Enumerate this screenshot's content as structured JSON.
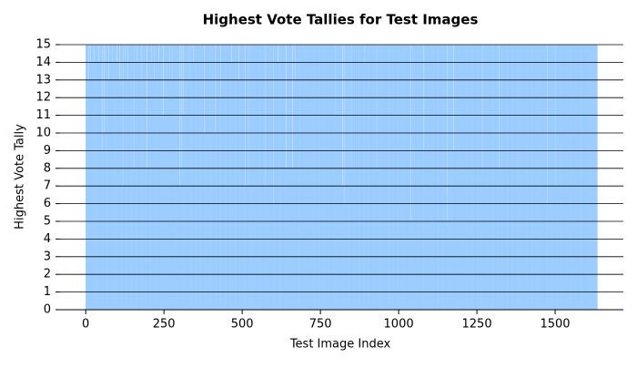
{
  "chart_data": {
    "type": "bar",
    "title": "Highest Vote Tallies for Test Images",
    "x_label": "Test Image Index",
    "y_label": "Highest Vote Tally",
    "color": "#80bfff",
    "grid": true,
    "xlim": [
      -82,
      1718
    ],
    "xticks": [
      0,
      250,
      500,
      750,
      1000,
      1250,
      1500
    ],
    "ylim": [
      0,
      15
    ],
    "yticks": [
      0,
      1,
      2,
      3,
      4,
      5,
      6,
      7,
      8,
      9,
      10,
      11,
      12,
      13,
      14,
      15
    ],
    "values": [
      15,
      15,
      15,
      15,
      15,
      15,
      15,
      15,
      15,
      15,
      13,
      15,
      15,
      15,
      15,
      15,
      14,
      15,
      15,
      15,
      15,
      15,
      15,
      15,
      15,
      15,
      14,
      15,
      15,
      15,
      15,
      15,
      15,
      15,
      15,
      15,
      15,
      15,
      15,
      15,
      15,
      15,
      14,
      15,
      15,
      15,
      15,
      15,
      15,
      15,
      15,
      15,
      9,
      15,
      15,
      15,
      15,
      15,
      10,
      15,
      15,
      15,
      14,
      15,
      15,
      15,
      15,
      15,
      15,
      15,
      15,
      15,
      15,
      15,
      13,
      15,
      15,
      15,
      15,
      15,
      15,
      15,
      15,
      15,
      15,
      14,
      15,
      15,
      15,
      15,
      15,
      15,
      15,
      15,
      15,
      15,
      15,
      15,
      15,
      14,
      15,
      15,
      15,
      15,
      15,
      15,
      15,
      15,
      15,
      13,
      15,
      15,
      15,
      15,
      15,
      15,
      15,
      15,
      15,
      15,
      7,
      15,
      15,
      15,
      15,
      15,
      15,
      14,
      15,
      15,
      15,
      15,
      15,
      15,
      15,
      13,
      15,
      15,
      15,
      15,
      15,
      15,
      15,
      15,
      15,
      15,
      15,
      15,
      15,
      15,
      15,
      15,
      15,
      15,
      15,
      8,
      15,
      15,
      15,
      15,
      15,
      15,
      15,
      15,
      14,
      15,
      15,
      15,
      15,
      15,
      15,
      15,
      15,
      15,
      15,
      15,
      15,
      13,
      15,
      15,
      15,
      15,
      15,
      15,
      15,
      15,
      15,
      15,
      15,
      15,
      15,
      15,
      15,
      15,
      15,
      8,
      15,
      15,
      15,
      15,
      15,
      15,
      15,
      15,
      15,
      15,
      15,
      15,
      15,
      15,
      14,
      15,
      15,
      15,
      15,
      15,
      15,
      15,
      15,
      13,
      15,
      15,
      15,
      15,
      15,
      15,
      15,
      15,
      15,
      15,
      15,
      15,
      15,
      14,
      15,
      15,
      15,
      15,
      15,
      15,
      15,
      15,
      15,
      15,
      15,
      15,
      15,
      15,
      15,
      11,
      15,
      15,
      15,
      15,
      15,
      15,
      15,
      15,
      15,
      15,
      15,
      15,
      15,
      15,
      15,
      15,
      15,
      15,
      14,
      15,
      15,
      15,
      15,
      15,
      15,
      15,
      15,
      13,
      15,
      15,
      15,
      15,
      15,
      15,
      15,
      15,
      15,
      15,
      15,
      15,
      15,
      15,
      15,
      15,
      15,
      15,
      15,
      15,
      15,
      15,
      7,
      15,
      15,
      15,
      15,
      8,
      15,
      15,
      15,
      15,
      15,
      11,
      15,
      15,
      15,
      15,
      15,
      15,
      15,
      15,
      15,
      15,
      15,
      15,
      15,
      15,
      15,
      15,
      15,
      15,
      15,
      13,
      15,
      15,
      15,
      15,
      15,
      15,
      15,
      15,
      15,
      15,
      15,
      14,
      15,
      15,
      15,
      15,
      15,
      15,
      15,
      15,
      15,
      15,
      15,
      15,
      15,
      15,
      15,
      15,
      15,
      15,
      15,
      15,
      15,
      15,
      15,
      15,
      15,
      15,
      15,
      15,
      15,
      15,
      15,
      15,
      15,
      15,
      15,
      15,
      10,
      15,
      15,
      15,
      15,
      15,
      15,
      15,
      15,
      15,
      15,
      15,
      15,
      15,
      15,
      15,
      15,
      15,
      15,
      15,
      15,
      15,
      15,
      15,
      15,
      15,
      15,
      15,
      15,
      15,
      15,
      15,
      15,
      15,
      15,
      10,
      15,
      15,
      15,
      15,
      15,
      15,
      15,
      15,
      15,
      15,
      15,
      15,
      15,
      15,
      15,
      12,
      15,
      15,
      15,
      15,
      15,
      15,
      15,
      15,
      15,
      15,
      15,
      15,
      15,
      15,
      15,
      15,
      15,
      15,
      15,
      15,
      15,
      15,
      15,
      15,
      15,
      15,
      15,
      15,
      15,
      15,
      15,
      15,
      15,
      15,
      15,
      14,
      15,
      15,
      15,
      15,
      15,
      15,
      15,
      15,
      15,
      15,
      15,
      15,
      15,
      15,
      15,
      15,
      15,
      15,
      15,
      15,
      15,
      15,
      13,
      15,
      15,
      15,
      15,
      15,
      15,
      15,
      15,
      15,
      15,
      15,
      15,
      15,
      15,
      15,
      15,
      15,
      15,
      15,
      7,
      15,
      15,
      15,
      15,
      15,
      15,
      15,
      15,
      15,
      7,
      15,
      15,
      15,
      15,
      15,
      15,
      15,
      15,
      15,
      15,
      15,
      15,
      15,
      15,
      15,
      15,
      15,
      15,
      15,
      15,
      15,
      15,
      15,
      15,
      15,
      15,
      15,
      15,
      15,
      15,
      15,
      15,
      15,
      15,
      15,
      15,
      15,
      15,
      15,
      15,
      15,
      15,
      15,
      15,
      15,
      15,
      15,
      15,
      15,
      15,
      15,
      15,
      15,
      15,
      7,
      15,
      15,
      15,
      15,
      15,
      15,
      15,
      15,
      15,
      15,
      15,
      15,
      15,
      15,
      15,
      15,
      15,
      15,
      15,
      15,
      15,
      15,
      15,
      15,
      6,
      15,
      15,
      15,
      15,
      15,
      15,
      15,
      15,
      15,
      15,
      15,
      15,
      15,
      15,
      14,
      15,
      15,
      15,
      15,
      15,
      15,
      15,
      15,
      15,
      15,
      15,
      15,
      15,
      15,
      15,
      15,
      15,
      15,
      15,
      15,
      15,
      15,
      15,
      15,
      8,
      15,
      15,
      15,
      15,
      15,
      15,
      15,
      15,
      15,
      15,
      15,
      15,
      15,
      15,
      15,
      15,
      15,
      15,
      15,
      8,
      15,
      15,
      15,
      15,
      15,
      15,
      15,
      15,
      15,
      13,
      15,
      15,
      15,
      15,
      15,
      15,
      15,
      15,
      15,
      15,
      15,
      15,
      15,
      15,
      15,
      15,
      15,
      15,
      15,
      15,
      15,
      15,
      15,
      15,
      15,
      15,
      15,
      15,
      15,
      15,
      15,
      15,
      15,
      15,
      15,
      15,
      15,
      15,
      15,
      15,
      15,
      15,
      15,
      15,
      15,
      15,
      15,
      15,
      15,
      15,
      15,
      15,
      15,
      15,
      15,
      15,
      15,
      15,
      15,
      15,
      15,
      15,
      15,
      15,
      15,
      15,
      15,
      15,
      15,
      15,
      15,
      15,
      15,
      15,
      15,
      15,
      15,
      15,
      15,
      15,
      15,
      15,
      15,
      15,
      15,
      15,
      15,
      15,
      15,
      15,
      15,
      15,
      15,
      15,
      15,
      15,
      15,
      15,
      15,
      15,
      15,
      15,
      15,
      15,
      15,
      15,
      15,
      15,
      15,
      15,
      15,
      15,
      15,
      15,
      15,
      15,
      15,
      15,
      15,
      15,
      15,
      15,
      15,
      15,
      15,
      15,
      15,
      15,
      11,
      15,
      15,
      15,
      15,
      15,
      15,
      15,
      15,
      15,
      15,
      15,
      15,
      15,
      15,
      15,
      15,
      15,
      15,
      15,
      15,
      7,
      15,
      15,
      15,
      15,
      15,
      15,
      15,
      6,
      15,
      15,
      15,
      15,
      15,
      15,
      15,
      15,
      15,
      15,
      15,
      15,
      15,
      15,
      15,
      15,
      15,
      15,
      15,
      15,
      15,
      8,
      15,
      15,
      15,
      15,
      15,
      15,
      15,
      15,
      15,
      15,
      15,
      15,
      15,
      15,
      15,
      15,
      15,
      15,
      15,
      15,
      15,
      15,
      15,
      15,
      15,
      15,
      15,
      15,
      15,
      15,
      15,
      15,
      15,
      15,
      15,
      15,
      15,
      15,
      15,
      15,
      15,
      14,
      15,
      15,
      15,
      15,
      15,
      15,
      15,
      15,
      15,
      15,
      15,
      15,
      15,
      15,
      15,
      15,
      15,
      15,
      15,
      15,
      15,
      15,
      15,
      15,
      15,
      15,
      15,
      15,
      15,
      15,
      15,
      15,
      15,
      15,
      15,
      15,
      15,
      8,
      15,
      15,
      15,
      15,
      15,
      15,
      15,
      15,
      15,
      15,
      15,
      15,
      15,
      15,
      15,
      15,
      15,
      15,
      15,
      15,
      15,
      15,
      15,
      15,
      15,
      15,
      15,
      15,
      15,
      15,
      15,
      15,
      15,
      15,
      15,
      15,
      15,
      15,
      15,
      15,
      15,
      15,
      15,
      15,
      15,
      15,
      15,
      15,
      15,
      15,
      15,
      15,
      15,
      15,
      15,
      15,
      15,
      15,
      15,
      15,
      15,
      15,
      15,
      15,
      15,
      15,
      15,
      15,
      15,
      15,
      15,
      15,
      15,
      15,
      15,
      15,
      15,
      15,
      15,
      15,
      15,
      15,
      15,
      15,
      15,
      15,
      15,
      15,
      15,
      15,
      15,
      15,
      15,
      15,
      15,
      15,
      15,
      15,
      15,
      15,
      15,
      15,
      15,
      15,
      15,
      15,
      15,
      15,
      15,
      5,
      15,
      15,
      15,
      15,
      15,
      15,
      15,
      15,
      15,
      15,
      15,
      15,
      15,
      15,
      15,
      15,
      15,
      15,
      15,
      15,
      15,
      15,
      15,
      15,
      15,
      15,
      15,
      15,
      15,
      15,
      15,
      15,
      15,
      15,
      15,
      15,
      15,
      15,
      15,
      9,
      15,
      15,
      15,
      15,
      15,
      15,
      15,
      15,
      15,
      15,
      15,
      15,
      15,
      15,
      15,
      15,
      15,
      15,
      15,
      15,
      15,
      15,
      15,
      15,
      15,
      15,
      15,
      15,
      15,
      15,
      15,
      15,
      15,
      15,
      15,
      15,
      15,
      15,
      15,
      15,
      15,
      15,
      15,
      15,
      15,
      15,
      15,
      15,
      15,
      15,
      15,
      15,
      15,
      15,
      15,
      15,
      15,
      15,
      15,
      15,
      15,
      15,
      15,
      15,
      15,
      15,
      15,
      15,
      15,
      15,
      15,
      15,
      15,
      15,
      5,
      15,
      15,
      15,
      15,
      15,
      15,
      15,
      15,
      15,
      15,
      15,
      15,
      15,
      15,
      15,
      15,
      15,
      15,
      15,
      9,
      15,
      15,
      15,
      15,
      15,
      15,
      15,
      15,
      15,
      15,
      15,
      15,
      15,
      15,
      15,
      15,
      15,
      15,
      15,
      15,
      15,
      15,
      15,
      15,
      15,
      15,
      15,
      15,
      15,
      15,
      15,
      15,
      15,
      15,
      15,
      15,
      15,
      15,
      15,
      15,
      15,
      15,
      15,
      15,
      15,
      15,
      15,
      15,
      15,
      15,
      15,
      15,
      15,
      15,
      15,
      15,
      15,
      15,
      15,
      15,
      15,
      15,
      15,
      15,
      15,
      15,
      15,
      15,
      15,
      15,
      15,
      15,
      15,
      15,
      15,
      15,
      15,
      15,
      15,
      15,
      15,
      15,
      15,
      15,
      15,
      15,
      15,
      15,
      15,
      15,
      15,
      15,
      15,
      15,
      8,
      15,
      15,
      15,
      15,
      15,
      15,
      15,
      15,
      15,
      15,
      15,
      15,
      15,
      15,
      15,
      15,
      15,
      15,
      15,
      15,
      15,
      15,
      15,
      15,
      15,
      15,
      15,
      15,
      15,
      15,
      15,
      15,
      15,
      15,
      15,
      15,
      15,
      15,
      15,
      15,
      15,
      15,
      15,
      15,
      15,
      15,
      15,
      15,
      15,
      8,
      15,
      15,
      15,
      15,
      15,
      15,
      15,
      15,
      15,
      15,
      15,
      15,
      15,
      15,
      15,
      15,
      15,
      15,
      15,
      15,
      15,
      15,
      15,
      15,
      15,
      15,
      15,
      15,
      15,
      15,
      15,
      15,
      15,
      15,
      15,
      15,
      15,
      15,
      15,
      15,
      15,
      15,
      15,
      15,
      15,
      15,
      15,
      15,
      15,
      15,
      15,
      15,
      15,
      15,
      15,
      15,
      15,
      15,
      15,
      15,
      15,
      15,
      15,
      15,
      15,
      15,
      15,
      15,
      15,
      15,
      15,
      15,
      15,
      15,
      15,
      15,
      15,
      15,
      15,
      15,
      15,
      15,
      15,
      15,
      15,
      15,
      15,
      15,
      15,
      15,
      15,
      15,
      15,
      15,
      15,
      15,
      15,
      15,
      15,
      15,
      15,
      15,
      15,
      15,
      15,
      15,
      15,
      15,
      15,
      15,
      15,
      15,
      15,
      15,
      15,
      15,
      15,
      15,
      15,
      15,
      15,
      15,
      15,
      15,
      15,
      15,
      15,
      15,
      15,
      15,
      15,
      15,
      15,
      15,
      15,
      15,
      15,
      15,
      15,
      15,
      15,
      15,
      15,
      15,
      15,
      15,
      15,
      15,
      15,
      15,
      15,
      15,
      15,
      15,
      6,
      15,
      15,
      15,
      15,
      15,
      15,
      15,
      15,
      15,
      15,
      15,
      15,
      15,
      15,
      15,
      15,
      15,
      15,
      15,
      15,
      15,
      15,
      15,
      15,
      7,
      15,
      15,
      15,
      15,
      15,
      15,
      15,
      15,
      15,
      15,
      15,
      15,
      15,
      15,
      15,
      15,
      15,
      15,
      15,
      15,
      15,
      15,
      15,
      15,
      15,
      15,
      15,
      15,
      15,
      15,
      15,
      15,
      15,
      15,
      15,
      15,
      15,
      15,
      15,
      15,
      15,
      15,
      15,
      15,
      15,
      15,
      15,
      15,
      15,
      15,
      15,
      15,
      15,
      15,
      15,
      15,
      15,
      15,
      15,
      15,
      15,
      15,
      15,
      15,
      15,
      15,
      15,
      15,
      15,
      15,
      15,
      15,
      15,
      15,
      15,
      15,
      15,
      15,
      15,
      15,
      15,
      15,
      15,
      15,
      15,
      15,
      15,
      15,
      15,
      15,
      15,
      15,
      15,
      15,
      15,
      15,
      15,
      15,
      15,
      15,
      15,
      15,
      15,
      15,
      15,
      15,
      15,
      15,
      15,
      15,
      15,
      15,
      15,
      15,
      15,
      15,
      15,
      15,
      15,
      15,
      15,
      15,
      15,
      15,
      15,
      15,
      15,
      15,
      15,
      15,
      15,
      15,
      15,
      15,
      15
    ]
  }
}
